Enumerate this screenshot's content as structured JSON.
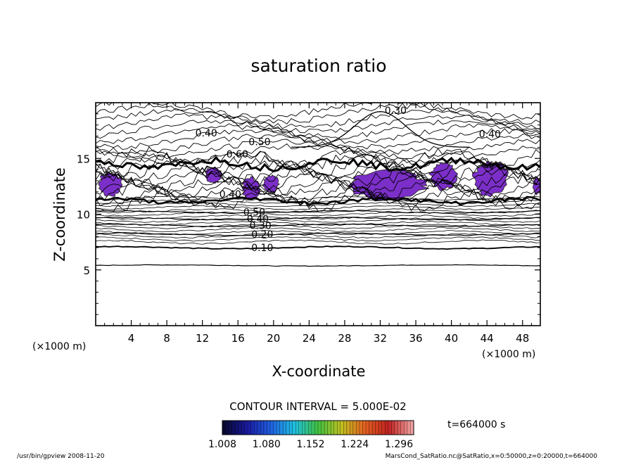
{
  "chart_data": {
    "type": "contour",
    "title": "saturation ratio",
    "xlabel": "X-coordinate",
    "ylabel": "Z-coordinate",
    "x_unit": "(×1000 m)",
    "y_unit": "(×1000 m)",
    "xlim": [
      0,
      50
    ],
    "ylim": [
      0,
      20
    ],
    "x_ticks": [
      4,
      8,
      12,
      16,
      20,
      24,
      28,
      32,
      36,
      40,
      44,
      48
    ],
    "y_ticks": [
      5,
      10,
      15
    ],
    "contour_interval_text": "CONTOUR INTERVAL = 5.000E-02",
    "time_text": "t=664000 s",
    "colorbar_ticks": [
      "1.008",
      "1.080",
      "1.152",
      "1.224",
      "1.296"
    ],
    "colorbar_range": [
      1.008,
      1.32
    ],
    "colormap": [
      "#080830",
      "#1a1aa0",
      "#2060e0",
      "#20c0e0",
      "#40c040",
      "#c0c020",
      "#e06020",
      "#c02020",
      "#f0a0a0"
    ],
    "fill_color": "#7b2fc8",
    "contour_levels": [
      {
        "value": 0.1,
        "z": 7.0,
        "label": "0.10",
        "label_x": 17.5
      },
      {
        "value": 0.2,
        "z": 8.2,
        "label": "0.20",
        "label_x": 17.5
      },
      {
        "value": 0.3,
        "z": 9.0,
        "label": "0.30",
        "label_x": 17.3
      },
      {
        "value": 0.4,
        "z": 9.6,
        "label": "0.40",
        "label_x": 17.0
      },
      {
        "value": 0.5,
        "z": 10.2,
        "label": "0.50",
        "label_x": 16.6
      }
    ],
    "upper_labels": [
      {
        "text": "0.30",
        "x": 32.5,
        "z": 19.3
      },
      {
        "text": "0.40",
        "x": 11.2,
        "z": 17.3
      },
      {
        "text": "0.40",
        "x": 43.1,
        "z": 17.2
      },
      {
        "text": "0.50",
        "x": 17.2,
        "z": 16.5
      },
      {
        "text": "0.60",
        "x": 14.7,
        "z": 15.4
      },
      {
        "text": "0.40",
        "x": 13.9,
        "z": 11.8
      }
    ],
    "supersaturated_regions": [
      {
        "x": [
          0.3,
          3.0
        ],
        "z": [
          11.6,
          13.7
        ]
      },
      {
        "x": [
          12.3,
          14.2
        ],
        "z": [
          12.8,
          14.2
        ]
      },
      {
        "x": [
          16.5,
          18.4
        ],
        "z": [
          11.3,
          13.3
        ]
      },
      {
        "x": [
          18.8,
          20.6
        ],
        "z": [
          11.9,
          13.5
        ]
      },
      {
        "x": [
          28.8,
          37.2
        ],
        "z": [
          11.2,
          13.9
        ]
      },
      {
        "x": [
          37.6,
          40.6
        ],
        "z": [
          12.2,
          14.6
        ]
      },
      {
        "x": [
          42.4,
          46.4
        ],
        "z": [
          11.6,
          14.7
        ]
      },
      {
        "x": [
          49.2,
          50.0
        ],
        "z": [
          11.8,
          13.3
        ]
      }
    ]
  },
  "footer": {
    "left": "/usr/bin/gpview   2008-11-20",
    "right": "MarsCond_SatRatio.nc@SatRatio,x=0:50000,z=0:20000,t=664000"
  }
}
